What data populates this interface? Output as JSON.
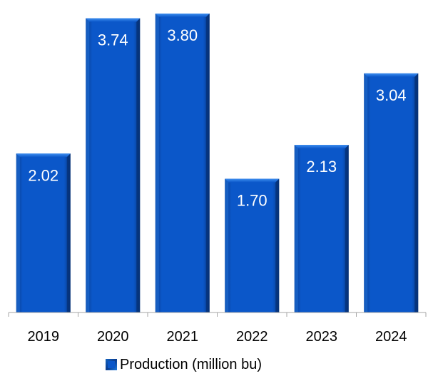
{
  "chart_data": {
    "type": "bar",
    "categories": [
      "2019",
      "2020",
      "2021",
      "2022",
      "2023",
      "2024"
    ],
    "series": [
      {
        "name": "Production (million bu)",
        "values": [
          2.02,
          3.74,
          3.8,
          1.7,
          2.13,
          3.04
        ]
      }
    ],
    "data_labels": [
      "2.02",
      "3.74",
      "3.80",
      "1.70",
      "2.13",
      "3.04"
    ],
    "ylim": [
      0,
      3.9
    ],
    "grid": false,
    "legend_position": "bottom",
    "colors": {
      "bar": "#0b57c9",
      "bar_dark": "#0a3d8f",
      "bar_light": "#3d8ef0"
    }
  },
  "legend": {
    "label": "Production (million bu)",
    "icon": "bar-swatch-icon"
  }
}
